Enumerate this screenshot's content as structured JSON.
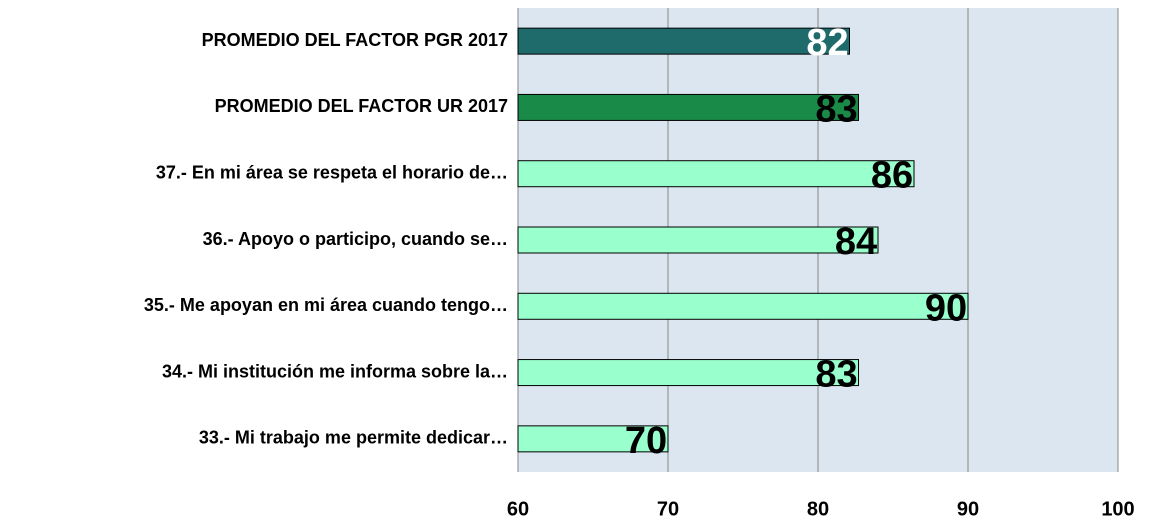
{
  "chart_data": {
    "type": "barh",
    "categories": [
      "PROMEDIO DEL FACTOR PGR 2017",
      "PROMEDIO DEL FACTOR UR 2017",
      "37.- En mi área se respeta el horario de…",
      "36.- Apoyo o participo, cuando se…",
      "35.- Me apoyan en mi área cuando tengo…",
      "34.- Mi institución me informa sobre la…",
      "33.- Mi trabajo me permite dedicar…"
    ],
    "values": [
      82.1,
      82.7,
      86.4,
      84,
      90,
      82.7,
      70
    ],
    "value_labels": [
      "82",
      "83",
      "86",
      "84",
      "90",
      "83",
      "70"
    ],
    "colors": [
      "#1f6b6b",
      "#1a8a48",
      "#99ffcc",
      "#99ffcc",
      "#99ffcc",
      "#99ffcc",
      "#99ffcc"
    ],
    "label_colors": [
      "#ffffff",
      "#000000",
      "#000000",
      "#000000",
      "#000000",
      "#000000",
      "#000000"
    ],
    "xlim": [
      60,
      100
    ],
    "xticks": [
      60,
      70,
      80,
      90,
      100
    ],
    "grid": true
  }
}
